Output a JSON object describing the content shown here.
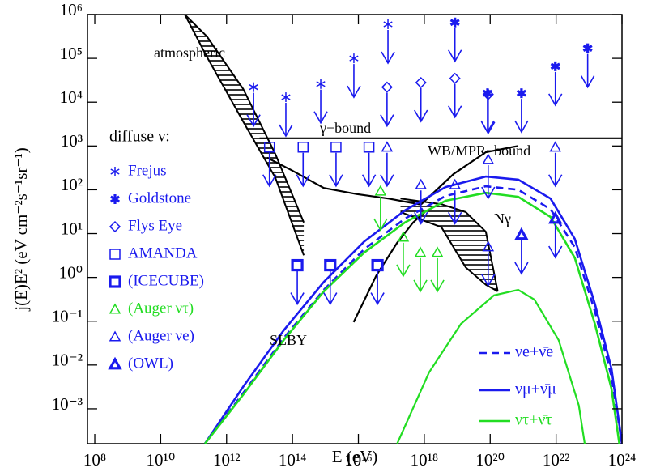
{
  "chart_data": {
    "type": "line",
    "xscale": "log",
    "yscale": "log",
    "xlabel": "E (eV)",
    "ylabel": "j(E)E² (eV cm⁻²s⁻¹sr⁻¹)",
    "xlim": [
      60000000.0,
      1e+24
    ],
    "ylim": [
      0.00016,
      1000000.0
    ],
    "xticks": [
      {
        "value": 100000000.0,
        "label": "10⁸"
      },
      {
        "value": 10000000000.0,
        "label": "10¹⁰"
      },
      {
        "value": 1000000000000.0,
        "label": "10¹²"
      },
      {
        "value": 100000000000000.0,
        "label": "10¹⁴"
      },
      {
        "value": 1e+16,
        "label": "10¹⁶"
      },
      {
        "value": 1e+18,
        "label": "10¹⁸"
      },
      {
        "value": 1e+20,
        "label": "10²⁰"
      },
      {
        "value": 1e+22,
        "label": "10²²"
      },
      {
        "value": 1e+24,
        "label": "10²⁴"
      }
    ],
    "yticks": [
      {
        "value": 0.001,
        "label": "10⁻³"
      },
      {
        "value": 0.01,
        "label": "10⁻²"
      },
      {
        "value": 0.1,
        "label": "10⁻¹"
      },
      {
        "value": 1,
        "label": "10⁰"
      },
      {
        "value": 10,
        "label": "10¹"
      },
      {
        "value": 100,
        "label": "10²"
      },
      {
        "value": 1000,
        "label": "10³"
      },
      {
        "value": 10000,
        "label": "10⁴"
      },
      {
        "value": 100000,
        "label": "10⁵"
      },
      {
        "value": 1000000,
        "label": "10⁶"
      }
    ],
    "annotations": [
      "SLBY"
    ],
    "series": [
      {
        "name": "νe+ν̄e",
        "color": "#1a1aee",
        "style": "dashed",
        "x": [
          220000000000.0,
          3200000000000.0,
          54000000000000.0,
          890000000000000.0,
          1.5e+16,
          2.6e+17,
          4.4e+18,
          7.4e+19,
          7.1e+20,
          6.8e+21,
          3.7e+22,
          1.5e+23,
          4.8e+23,
          1e+24
        ],
        "values": [
          0.00016,
          0.0023,
          0.041,
          0.52,
          4.4,
          22,
          72,
          120,
          100,
          36,
          4.9,
          0.17,
          0.0055,
          0.00016
        ]
      },
      {
        "name": "νμ+ν̄μ",
        "color": "#1a1aee",
        "style": "solid",
        "x": [
          220000000000.0,
          3200000000000.0,
          54000000000000.0,
          890000000000000.0,
          1.5e+16,
          2.6e+17,
          4.4e+18,
          7.4e+19,
          7.1e+20,
          6.8e+21,
          3.7e+22,
          1.5e+23,
          4.8e+23,
          1e+24
        ],
        "values": [
          0.00016,
          0.0032,
          0.062,
          0.79,
          6.6,
          34,
          115,
          200,
          170,
          63,
          7.6,
          0.25,
          0.0083,
          0.00016
        ]
      },
      {
        "name": "ντ+ν̄τ",
        "color": "#22dd22",
        "style": "solid",
        "x": [
          220000000000.0,
          3200000000000.0,
          54000000000000.0,
          890000000000000.0,
          1.5e+16,
          2.6e+17,
          4.4e+18,
          7.4e+19,
          7.1e+20,
          6.8e+21,
          3.7e+22,
          1.5e+23,
          4.8e+23,
          8.3e+23
        ],
        "values": [
          0.00016,
          0.0021,
          0.037,
          0.48,
          3.7,
          18,
          56,
          85,
          69,
          24,
          2.8,
          0.087,
          0.0029,
          0.00016
        ]
      }
    ],
    "curves": [
      {
        "label": "atmospheric",
        "color": "#000000",
        "hatched": true,
        "x": [
          54000000000.0,
          250000000000.0,
          3200000000000.0,
          30000000000000.0,
          220000000000000.0
        ],
        "y_high": [
          1000000.0,
          320000.0,
          20000.0,
          660,
          18
        ],
        "y_low": [
          1000000.0,
          110000.0,
          3600,
          190,
          3.2
        ]
      },
      {
        "label": "γ−bound",
        "color": "#000000",
        "x": [
          10000000000000.0,
          1e+24
        ],
        "y": [
          1500,
          1500
        ]
      },
      {
        "label": "WB/MPR−bound",
        "color": "#000000",
        "x": [
          17000000000000.0,
          93000000000000.0,
          890000000000000.0,
          8700000000000000.0,
          8.3e+16,
          7.9e+17,
          7.8e+18,
          7.4e+19,
          7.1e+20
        ],
        "y": [
          540,
          280,
          110,
          80,
          63,
          46,
          230,
          720,
          1000
        ]
      },
      {
        "label": "Nγ",
        "color": "#000000",
        "hatched": true,
        "x": [
          1.9e+17,
          3.3e+18,
          1.8e+19,
          7.4e+19,
          1.7e+20
        ],
        "y_high": [
          63,
          47,
          31,
          11,
          0.48
        ],
        "y_low": [
          31,
          14,
          1.7,
          0.68,
          0.48
        ]
      },
      {
        "color": "#000000",
        "x": [
          7200000000000000.0,
          3.5e+16,
          1.5e+17,
          4.6e+17,
          1.05e+18
        ],
        "y": [
          0.095,
          1.1,
          6.2,
          18,
          31
        ]
      },
      {
        "color": "#22dd22",
        "x": [
          1.5e+17,
          1.4e+18,
          1.3e+19,
          1.3e+20,
          7.1e+20,
          2.2e+21,
          1.2e+22,
          4.9e+22,
          7.4e+22
        ],
        "y": [
          0.00016,
          0.0068,
          0.087,
          0.39,
          0.52,
          0.31,
          0.037,
          0.0012,
          0.00016
        ]
      }
    ],
    "limits_title": "diffuse ν:",
    "limits": [
      {
        "name": "Frejus",
        "marker": "asterisk",
        "bold": false,
        "color": "#1a1aee",
        "x": [
          6600000000000.0,
          63000000000000.0,
          720000000000000.0,
          7300000000000000.0,
          7.9e+16
        ],
        "y": [
          22000.0,
          13000.0,
          26000.0,
          100000.0,
          600000.0
        ]
      },
      {
        "name": "Goldstone",
        "marker": "asterisk",
        "bold": true,
        "color": "#1a1aee",
        "x": [
          8.5e+18,
          8.3e+19,
          8.9e+20,
          9.5e+21,
          9.1e+22
        ],
        "y": [
          660000.0,
          16000.0,
          16000.0,
          66000.0,
          170000.0
        ]
      },
      {
        "name": "Flys Eye",
        "marker": "diamond",
        "bold": false,
        "color": "#1a1aee",
        "x": [
          7.4e+16,
          7.9e+17,
          8.5e+18,
          8.7e+19
        ],
        "y": [
          22000.0,
          28000.0,
          35000.0,
          15000.0
        ]
      },
      {
        "name": "AMANDA",
        "marker": "square",
        "bold": false,
        "color": "#1a1aee",
        "x": [
          20000000000000.0,
          210000000000000.0,
          2100000000000000.0,
          2.1e+16
        ],
        "y": [
          940,
          940,
          940,
          940
        ]
      },
      {
        "name": "(ICECUBE)",
        "marker": "square",
        "bold": true,
        "color": "#1a1aee",
        "x": [
          140000000000000.0,
          1400000000000000.0,
          3.8e+16
        ],
        "y": [
          1.9,
          1.9,
          1.9
        ]
      },
      {
        "name": "(Auger ντ)",
        "marker": "triangle",
        "bold": false,
        "color": "#22dd22",
        "x": [
          4.7e+16,
          2.3e+17,
          7.6e+17,
          2.5e+18
        ],
        "y": [
          93,
          8.3,
          3.7,
          3.7
        ]
      },
      {
        "name": "(Auger νe)",
        "marker": "triangle",
        "bold": false,
        "color": "#1a1aee",
        "x": [
          7.4e+16,
          7.9e+17,
          8.5e+18,
          8.7e+19,
          8.7e+19,
          9.5e+21
        ],
        "y": [
          940,
          130,
          130,
          490,
          5,
          940
        ]
      },
      {
        "name": "(OWL)",
        "marker": "triangle",
        "bold": true,
        "color": "#1a1aee",
        "x": [
          8.9e+20,
          9.5e+21
        ],
        "y": [
          9.4,
          22
        ]
      }
    ]
  }
}
